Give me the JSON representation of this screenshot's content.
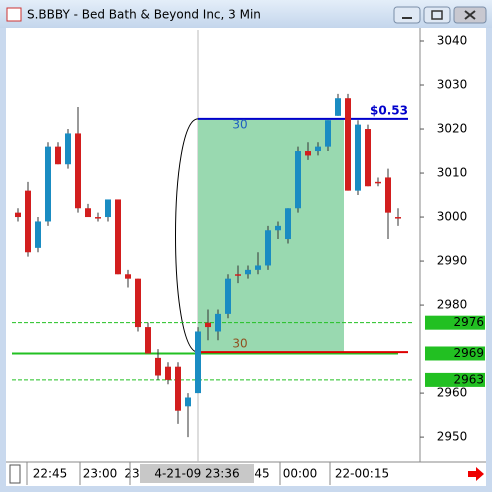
{
  "window_title": "S.BBBY - Bed Bath & Beyond Inc, 3 Min",
  "chart_data": {
    "type": "candlestick",
    "ylim": [
      2944.8,
      3042.5
    ],
    "yticks": [
      2950,
      2960,
      2980,
      2990,
      3000,
      3010,
      3020,
      3030,
      3040
    ],
    "xtick_labels": [
      "22:45",
      "23:00",
      "23:",
      "45",
      "00:00",
      "22-00:15"
    ],
    "crosshair_label": "4-21-09 23:36",
    "up_color": "#1a8cc2",
    "down_color": "#d21e1e",
    "open": [
      3001,
      3006,
      2993,
      2999,
      3016,
      3012,
      3019,
      3002,
      3000,
      3000,
      3004,
      2987,
      2986,
      2975,
      2968,
      2966,
      2966,
      2957,
      2960,
      2976,
      2974,
      2978,
      2987,
      2987,
      2988,
      2989,
      2997,
      2995,
      3002,
      3015,
      3015,
      3016,
      3023,
      3027,
      3006,
      3020,
      3008,
      3009,
      3000
    ],
    "high": [
      3002,
      3008,
      3000,
      3017,
      3017,
      3020,
      3025,
      3003,
      3001,
      3004,
      3004,
      2988,
      2986,
      2976,
      2970,
      2967,
      2967,
      2960,
      2975,
      2979,
      2979,
      2987,
      2989,
      2989,
      2992,
      2998,
      2999,
      3002,
      3016,
      3017,
      3017,
      3022,
      3028,
      3028,
      3022,
      3021,
      3009,
      3011,
      3002
    ],
    "low": [
      2999,
      2991,
      2992,
      2998,
      3012,
      3011,
      3001,
      3000,
      2999,
      2999,
      2987,
      2984,
      2974,
      2969,
      2963,
      2962,
      2953,
      2950,
      2960,
      2972,
      2972,
      2977,
      2985,
      2986,
      2987,
      2988,
      2995,
      2994,
      3001,
      3013,
      3014,
      3015,
      3023,
      3006,
      3005,
      3007,
      3007,
      2995,
      2998
    ],
    "close": [
      3000,
      2992,
      2999,
      3016,
      3012,
      3019,
      3002,
      3000,
      3000,
      3004,
      2987,
      2986,
      2975,
      2969,
      2964,
      2963,
      2956,
      2959,
      2974,
      2975,
      2978,
      2986,
      2987,
      2988,
      2989,
      2997,
      2998,
      3002,
      3015,
      3014,
      3016,
      3022,
      3027,
      3006,
      3021,
      3007,
      3008,
      3001,
      3000
    ],
    "levels": [
      2976,
      2969,
      2963
    ],
    "level_color": "#22c022",
    "trade": {
      "entry": 2969.3,
      "exit": 3022.3,
      "entry_qty": "30",
      "exit_qty": "30",
      "profit": "$0.53"
    }
  }
}
